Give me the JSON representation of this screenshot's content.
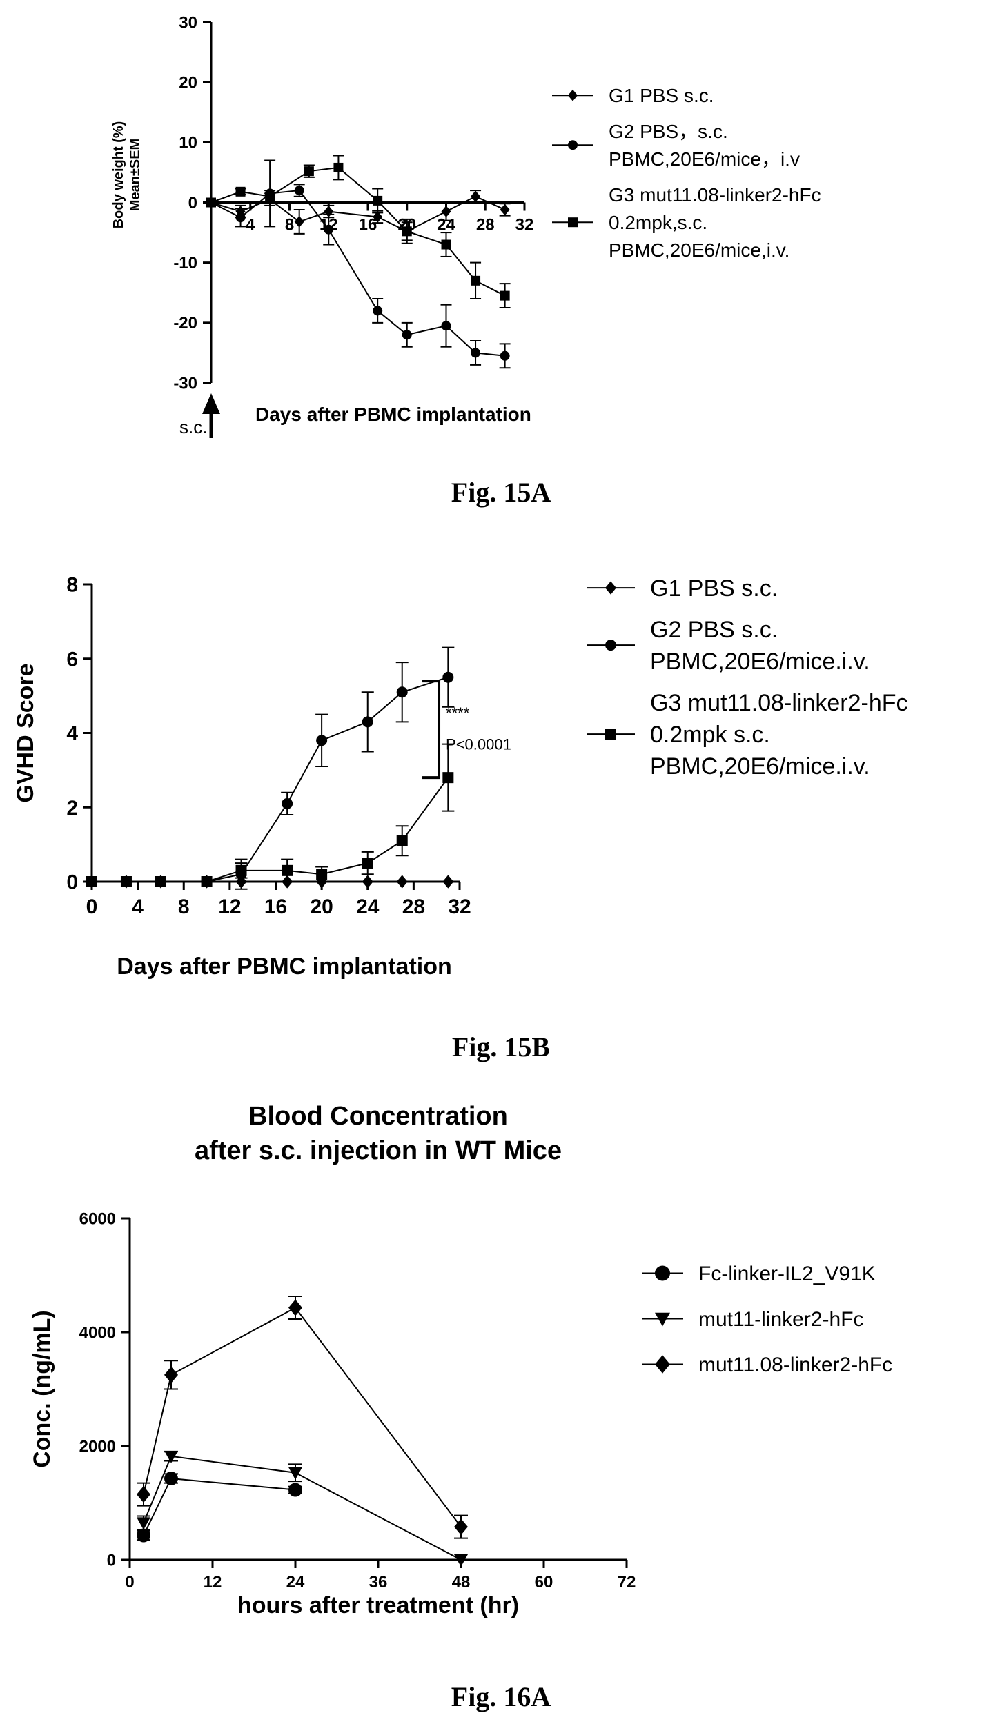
{
  "figures": [
    {
      "label": "Fig. 15A"
    },
    {
      "label": "Fig. 15B"
    },
    {
      "label": "Fig. 16A"
    }
  ],
  "chart_data": [
    {
      "type": "line",
      "title": "",
      "xlabel": "Days after PBMC implantation",
      "ylabel": "Body weight (%) Mean±SEM",
      "xlim": [
        0,
        32
      ],
      "ylim": [
        -30,
        30
      ],
      "xticks": [
        4,
        8,
        12,
        16,
        20,
        24,
        28,
        32
      ],
      "yticks": [
        30,
        20,
        10,
        0,
        -10,
        -20,
        -30
      ],
      "annotation": "s.c.",
      "legend_position": "right",
      "series": [
        {
          "name": "G1 PBS s.c.",
          "marker": "diamond",
          "x": [
            0,
            3,
            6,
            9,
            12,
            17,
            20,
            24,
            27,
            30
          ],
          "y": [
            0,
            -1.5,
            0.5,
            -3.2,
            -1.5,
            -2.4,
            -4.8,
            -1.5,
            1,
            -1.2
          ],
          "err": [
            0,
            1,
            1,
            2,
            1,
            1,
            1.5,
            1.5,
            1,
            1
          ]
        },
        {
          "name": "G2 PBS，s.c. PBMC,20E6/mice，i.v",
          "marker": "circle",
          "x": [
            0,
            3,
            6,
            9,
            12,
            17,
            20,
            24,
            27,
            30
          ],
          "y": [
            0,
            -2.5,
            1.5,
            2,
            -4.5,
            -18,
            -22,
            -20.5,
            -25,
            -25.5
          ],
          "err": [
            0,
            1.5,
            5.5,
            1,
            2.5,
            2,
            2,
            3.5,
            2,
            2
          ]
        },
        {
          "name": "G3 mut11.08-linker2-hFc 0.2mpk,s.c. PBMC,20E6/mice,i.v.",
          "marker": "square",
          "x": [
            0,
            3,
            6,
            10,
            13,
            17,
            20,
            24,
            27,
            30
          ],
          "y": [
            0,
            1.8,
            1,
            5.2,
            5.8,
            0.3,
            -4.8,
            -7,
            -13,
            -15.5
          ],
          "err": [
            0,
            0.5,
            1,
            1,
            2,
            2,
            2,
            2,
            3,
            2
          ]
        }
      ]
    },
    {
      "type": "line",
      "title": "",
      "xlabel": "Days after PBMC implantation",
      "ylabel": "GVHD Score",
      "xlim": [
        0,
        32
      ],
      "ylim": [
        0,
        8
      ],
      "xticks": [
        0,
        4,
        8,
        12,
        16,
        20,
        24,
        28,
        32
      ],
      "yticks": [
        0,
        2,
        4,
        6,
        8
      ],
      "annotations": [
        "****",
        "P<0.0001"
      ],
      "legend_position": "right",
      "series": [
        {
          "name": "G1 PBS s.c.",
          "marker": "diamond",
          "x": [
            0,
            3,
            6,
            10,
            13,
            17,
            20,
            24,
            27,
            31
          ],
          "y": [
            0,
            0,
            0,
            0,
            0,
            0,
            0,
            0,
            0,
            0
          ],
          "err": [
            0,
            0,
            0,
            0,
            0,
            0,
            0,
            0,
            0,
            0
          ]
        },
        {
          "name": "G2 PBS s.c. PBMC,20E6/mice.i.v.",
          "marker": "circle",
          "x": [
            0,
            3,
            6,
            10,
            13,
            17,
            20,
            24,
            27,
            31
          ],
          "y": [
            0,
            0,
            0,
            0,
            0.2,
            2.1,
            3.8,
            4.3,
            5.1,
            5.5
          ],
          "err": [
            0,
            0,
            0,
            0,
            0.4,
            0.3,
            0.7,
            0.8,
            0.8,
            0.8
          ]
        },
        {
          "name": "G3 mut11.08-linker2-hFc 0.2mpk s.c. PBMC,20E6/mice.i.v.",
          "marker": "square",
          "x": [
            0,
            3,
            6,
            10,
            13,
            17,
            20,
            24,
            27,
            31
          ],
          "y": [
            0,
            0,
            0,
            0,
            0.3,
            0.3,
            0.2,
            0.5,
            1.1,
            2.8
          ],
          "err": [
            0,
            0,
            0,
            0,
            0.2,
            0.3,
            0.2,
            0.3,
            0.4,
            0.9
          ]
        }
      ]
    },
    {
      "type": "line",
      "title": "Blood Concentration after s.c. injection in WT Mice",
      "title_lines": [
        "Blood Concentration",
        "after s.c. injection in WT Mice"
      ],
      "xlabel": "hours after treatment (hr)",
      "ylabel": "Conc. (ng/mL)",
      "xlim": [
        0,
        72
      ],
      "ylim": [
        0,
        6000
      ],
      "xticks": [
        0,
        12,
        24,
        36,
        48,
        60,
        72
      ],
      "yticks": [
        0,
        2000,
        4000,
        6000
      ],
      "legend_position": "right",
      "series": [
        {
          "name": "Fc-linker-IL2_V91K",
          "marker": "circle",
          "x": [
            2,
            6,
            24
          ],
          "y": [
            430,
            1430,
            1230
          ],
          "err": [
            80,
            80,
            60
          ]
        },
        {
          "name": "mut11-linker2-hFc",
          "marker": "triangle-down",
          "x": [
            2,
            6,
            24,
            48
          ],
          "y": [
            650,
            1820,
            1530,
            0
          ],
          "err": [
            120,
            80,
            150,
            0
          ]
        },
        {
          "name": "mut11.08-linker2-hFc",
          "marker": "diamond",
          "x": [
            2,
            6,
            24,
            48
          ],
          "y": [
            1150,
            3250,
            4430,
            580
          ],
          "err": [
            200,
            250,
            200,
            200
          ]
        }
      ]
    }
  ]
}
